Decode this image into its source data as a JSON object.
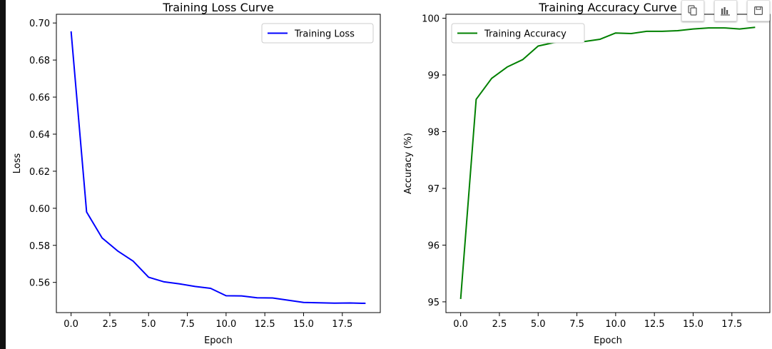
{
  "toolbar": {
    "buttons": [
      {
        "icon": "copy-icon"
      },
      {
        "icon": "bar-chart-icon"
      },
      {
        "icon": "save-icon"
      }
    ]
  },
  "chart_data": [
    {
      "type": "line",
      "title": "Training Loss Curve",
      "xlabel": "Epoch",
      "ylabel": "Loss",
      "xlim": [
        -0.95,
        19.95
      ],
      "ylim": [
        0.5437,
        0.7047
      ],
      "xticks": [
        0.0,
        2.5,
        5.0,
        7.5,
        10.0,
        12.5,
        15.0,
        17.5
      ],
      "xtick_labels": [
        "0.0",
        "2.5",
        "5.0",
        "7.5",
        "10.0",
        "12.5",
        "15.0",
        "17.5"
      ],
      "yticks": [
        0.56,
        0.58,
        0.6,
        0.62,
        0.64,
        0.66,
        0.68,
        0.7
      ],
      "ytick_labels": [
        "0.56",
        "0.58",
        "0.60",
        "0.62",
        "0.64",
        "0.66",
        "0.68",
        "0.70"
      ],
      "grid": false,
      "legend": "top-right",
      "series": [
        {
          "name": "Training Loss",
          "color": "#0000ff",
          "x": [
            0,
            1,
            2,
            3,
            4,
            5,
            6,
            7,
            8,
            9,
            10,
            11,
            12,
            13,
            14,
            15,
            16,
            17,
            18,
            19
          ],
          "y": [
            0.6955,
            0.598,
            0.584,
            0.577,
            0.5715,
            0.5628,
            0.5603,
            0.5592,
            0.5578,
            0.5568,
            0.5528,
            0.5527,
            0.5517,
            0.5516,
            0.5504,
            0.5492,
            0.549,
            0.5488,
            0.5489,
            0.5487
          ]
        }
      ]
    },
    {
      "type": "line",
      "title": "Training Accuracy Curve",
      "xlabel": "Epoch",
      "ylabel": "Accuracy (%)",
      "xlim": [
        -0.95,
        19.95
      ],
      "ylim": [
        94.81,
        100.07
      ],
      "xticks": [
        0.0,
        2.5,
        5.0,
        7.5,
        10.0,
        12.5,
        15.0,
        17.5
      ],
      "xtick_labels": [
        "0.0",
        "2.5",
        "5.0",
        "7.5",
        "10.0",
        "12.5",
        "15.0",
        "17.5"
      ],
      "yticks": [
        95,
        96,
        97,
        98,
        99,
        100
      ],
      "ytick_labels": [
        "95",
        "96",
        "97",
        "98",
        "99",
        "100"
      ],
      "grid": false,
      "legend": "top-left",
      "series": [
        {
          "name": "Training Accuracy",
          "color": "#008000",
          "x": [
            0,
            1,
            2,
            3,
            4,
            5,
            6,
            7,
            8,
            9,
            10,
            11,
            12,
            13,
            14,
            15,
            16,
            17,
            18,
            19
          ],
          "y": [
            95.05,
            98.57,
            98.94,
            99.14,
            99.27,
            99.51,
            99.57,
            99.59,
            99.59,
            99.63,
            99.74,
            99.73,
            99.77,
            99.77,
            99.78,
            99.81,
            99.83,
            99.83,
            99.81,
            99.84
          ]
        }
      ]
    }
  ]
}
